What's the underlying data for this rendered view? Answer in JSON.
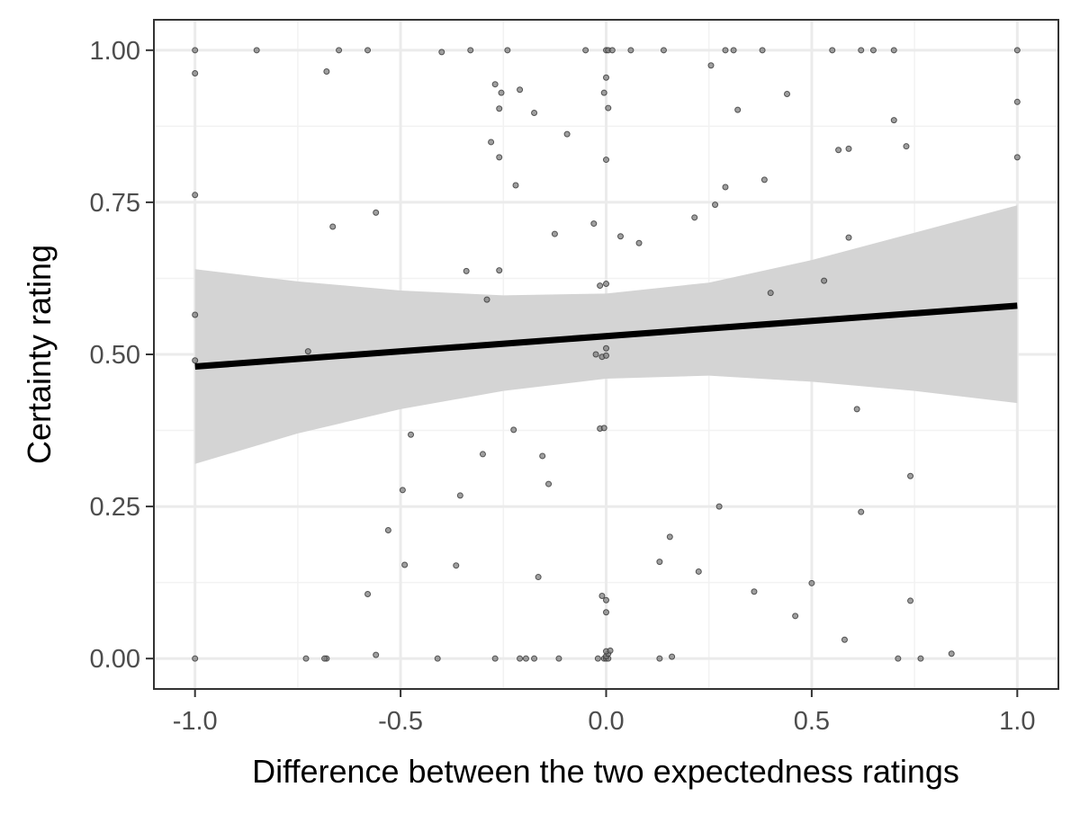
{
  "chart_data": {
    "type": "scatter",
    "title": "",
    "xlabel": "Difference between the two expectedness ratings",
    "ylabel": "Certainty rating",
    "xlim": [
      -1.1,
      1.1
    ],
    "ylim": [
      -0.05,
      1.05
    ],
    "x_ticks": [
      -1.0,
      -0.5,
      0.0,
      0.5,
      1.0
    ],
    "x_tick_labels": [
      "-1.0",
      "-0.5",
      "0.0",
      "0.5",
      "1.0"
    ],
    "y_ticks": [
      0.0,
      0.25,
      0.5,
      0.75,
      1.0
    ],
    "y_tick_labels": [
      "0.00",
      "0.25",
      "0.50",
      "0.75",
      "1.00"
    ],
    "grid": true,
    "legend": "none",
    "colors": {
      "point_fill": "#7f7f7f",
      "point_stroke": "#333333",
      "fit_line": "#000000",
      "confidence_band": "#d4d4d4",
      "grid_major": "#ebebeb",
      "grid_minor": "#f2f2f2",
      "panel_border": "#333333"
    },
    "points": [
      {
        "x": -1.0,
        "y": 1.0
      },
      {
        "x": -1.0,
        "y": 0.962
      },
      {
        "x": -1.0,
        "y": 0.762
      },
      {
        "x": -1.0,
        "y": 0.565
      },
      {
        "x": -1.0,
        "y": 0.49
      },
      {
        "x": -1.0,
        "y": 0.0
      },
      {
        "x": -0.85,
        "y": 1.0
      },
      {
        "x": -0.68,
        "y": 0.965
      },
      {
        "x": -0.65,
        "y": 1.0
      },
      {
        "x": -0.58,
        "y": 1.0
      },
      {
        "x": -0.665,
        "y": 0.71
      },
      {
        "x": -0.56,
        "y": 0.733
      },
      {
        "x": -0.725,
        "y": 0.505
      },
      {
        "x": -0.4,
        "y": 0.997
      },
      {
        "x": -0.33,
        "y": 1.0
      },
      {
        "x": -0.24,
        "y": 1.0
      },
      {
        "x": -0.27,
        "y": 0.944
      },
      {
        "x": -0.255,
        "y": 0.93
      },
      {
        "x": -0.21,
        "y": 0.935
      },
      {
        "x": -0.26,
        "y": 0.904
      },
      {
        "x": -0.175,
        "y": 0.897
      },
      {
        "x": -0.28,
        "y": 0.849
      },
      {
        "x": -0.26,
        "y": 0.824
      },
      {
        "x": -0.095,
        "y": 0.862
      },
      {
        "x": -0.22,
        "y": 0.778
      },
      {
        "x": -0.125,
        "y": 0.698
      },
      {
        "x": -0.34,
        "y": 0.637
      },
      {
        "x": -0.26,
        "y": 0.638
      },
      {
        "x": -0.29,
        "y": 0.59
      },
      {
        "x": -0.03,
        "y": 0.715
      },
      {
        "x": -0.05,
        "y": 1.0
      },
      {
        "x": 0.0,
        "y": 1.0
      },
      {
        "x": 0.005,
        "y": 1.0
      },
      {
        "x": 0.015,
        "y": 1.0
      },
      {
        "x": 0.06,
        "y": 1.0
      },
      {
        "x": 0.14,
        "y": 1.0
      },
      {
        "x": 0.0,
        "y": 0.955
      },
      {
        "x": -0.005,
        "y": 0.93
      },
      {
        "x": 0.005,
        "y": 0.905
      },
      {
        "x": 0.0,
        "y": 0.82
      },
      {
        "x": 0.035,
        "y": 0.694
      },
      {
        "x": 0.08,
        "y": 0.683
      },
      {
        "x": -0.015,
        "y": 0.613
      },
      {
        "x": 0.0,
        "y": 0.616
      },
      {
        "x": 0.0,
        "y": 0.51
      },
      {
        "x": -0.025,
        "y": 0.5
      },
      {
        "x": -0.01,
        "y": 0.496
      },
      {
        "x": 0.0,
        "y": 0.498
      },
      {
        "x": -0.015,
        "y": 0.378
      },
      {
        "x": -0.005,
        "y": 0.379
      },
      {
        "x": 0.29,
        "y": 1.0
      },
      {
        "x": 0.31,
        "y": 1.0
      },
      {
        "x": 0.38,
        "y": 1.0
      },
      {
        "x": 0.55,
        "y": 1.0
      },
      {
        "x": 0.62,
        "y": 1.0
      },
      {
        "x": 0.65,
        "y": 1.0
      },
      {
        "x": 0.7,
        "y": 1.0
      },
      {
        "x": 1.0,
        "y": 1.0
      },
      {
        "x": 0.255,
        "y": 0.975
      },
      {
        "x": 0.44,
        "y": 0.928
      },
      {
        "x": 0.32,
        "y": 0.902
      },
      {
        "x": 1.0,
        "y": 0.915
      },
      {
        "x": 0.7,
        "y": 0.885
      },
      {
        "x": 0.73,
        "y": 0.842
      },
      {
        "x": 0.565,
        "y": 0.836
      },
      {
        "x": 0.59,
        "y": 0.838
      },
      {
        "x": 1.0,
        "y": 0.824
      },
      {
        "x": 0.385,
        "y": 0.787
      },
      {
        "x": 0.29,
        "y": 0.775
      },
      {
        "x": 0.265,
        "y": 0.746
      },
      {
        "x": 0.215,
        "y": 0.725
      },
      {
        "x": 0.59,
        "y": 0.692
      },
      {
        "x": 0.53,
        "y": 0.621
      },
      {
        "x": 0.4,
        "y": 0.601
      },
      {
        "x": -0.475,
        "y": 0.368
      },
      {
        "x": -0.225,
        "y": 0.376
      },
      {
        "x": -0.3,
        "y": 0.336
      },
      {
        "x": -0.155,
        "y": 0.333
      },
      {
        "x": -0.495,
        "y": 0.277
      },
      {
        "x": -0.355,
        "y": 0.268
      },
      {
        "x": -0.14,
        "y": 0.287
      },
      {
        "x": -0.53,
        "y": 0.211
      },
      {
        "x": -0.49,
        "y": 0.154
      },
      {
        "x": -0.365,
        "y": 0.153
      },
      {
        "x": -0.165,
        "y": 0.134
      },
      {
        "x": -0.58,
        "y": 0.106
      },
      {
        "x": 0.61,
        "y": 0.41
      },
      {
        "x": 0.74,
        "y": 0.3
      },
      {
        "x": 0.62,
        "y": 0.241
      },
      {
        "x": 0.275,
        "y": 0.25
      },
      {
        "x": 0.155,
        "y": 0.2
      },
      {
        "x": 0.13,
        "y": 0.159
      },
      {
        "x": 0.225,
        "y": 0.143
      },
      {
        "x": 0.5,
        "y": 0.124
      },
      {
        "x": 0.36,
        "y": 0.11
      },
      {
        "x": 0.74,
        "y": 0.095
      },
      {
        "x": 0.46,
        "y": 0.07
      },
      {
        "x": 0.58,
        "y": 0.031
      },
      {
        "x": -0.01,
        "y": 0.103
      },
      {
        "x": 0.0,
        "y": 0.096
      },
      {
        "x": 0.0,
        "y": 0.076
      },
      {
        "x": -0.68,
        "y": 0.0
      },
      {
        "x": -0.685,
        "y": 0.0
      },
      {
        "x": -0.73,
        "y": 0.0
      },
      {
        "x": -0.56,
        "y": 0.006
      },
      {
        "x": -0.41,
        "y": 0.0
      },
      {
        "x": -0.27,
        "y": 0.0
      },
      {
        "x": -0.21,
        "y": 0.0
      },
      {
        "x": -0.195,
        "y": 0.0
      },
      {
        "x": -0.175,
        "y": 0.0
      },
      {
        "x": -0.115,
        "y": 0.0
      },
      {
        "x": -0.02,
        "y": 0.0
      },
      {
        "x": -0.005,
        "y": 0.0
      },
      {
        "x": 0.0,
        "y": 0.0
      },
      {
        "x": 0.005,
        "y": 0.0
      },
      {
        "x": 0.0,
        "y": 0.004
      },
      {
        "x": 0.005,
        "y": 0.008
      },
      {
        "x": 0.0,
        "y": 0.012
      },
      {
        "x": 0.01,
        "y": 0.013
      },
      {
        "x": 0.13,
        "y": 0.0
      },
      {
        "x": 0.16,
        "y": 0.003
      },
      {
        "x": 0.71,
        "y": 0.0
      },
      {
        "x": 0.765,
        "y": 0.0
      },
      {
        "x": 0.84,
        "y": 0.008
      }
    ],
    "fit": {
      "method": "linear",
      "x": [
        -1.0,
        1.0
      ],
      "y": [
        0.48,
        0.58
      ]
    },
    "confidence_band": {
      "x": [
        -1.0,
        -0.75,
        -0.5,
        -0.25,
        0.0,
        0.25,
        0.5,
        0.75,
        1.0
      ],
      "upper": [
        0.64,
        0.62,
        0.605,
        0.597,
        0.6,
        0.618,
        0.655,
        0.7,
        0.745
      ],
      "lower": [
        0.32,
        0.37,
        0.41,
        0.44,
        0.46,
        0.465,
        0.455,
        0.44,
        0.42
      ]
    }
  }
}
